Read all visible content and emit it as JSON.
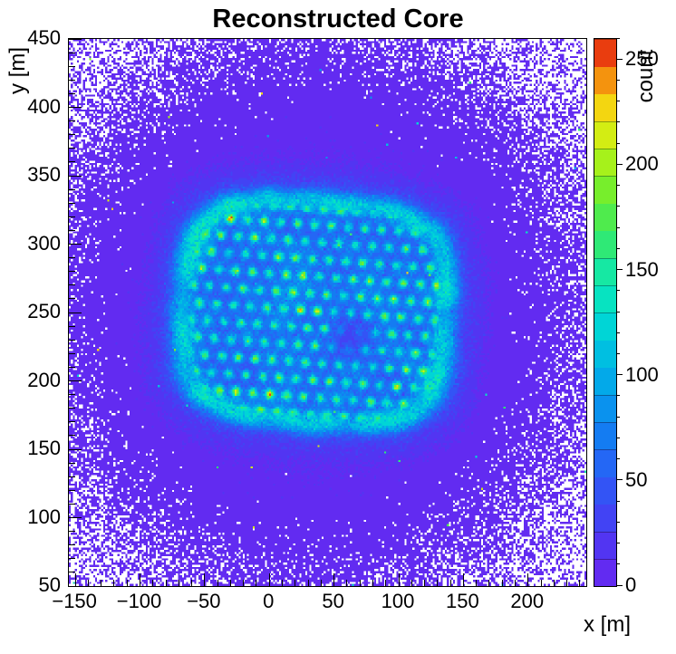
{
  "chart_data": {
    "type": "heatmap",
    "title": "Reconstructed Core",
    "xlabel": "x [m]",
    "ylabel": "y [m]",
    "zlabel": "count",
    "xlim": [
      -155,
      245
    ],
    "ylim": [
      50,
      450
    ],
    "zlim": [
      0,
      260
    ],
    "x_ticks": [
      -150,
      -100,
      -50,
      0,
      50,
      100,
      150,
      200
    ],
    "y_ticks": [
      50,
      100,
      150,
      200,
      250,
      300,
      350,
      400,
      450
    ],
    "z_ticks": [
      0,
      50,
      100,
      150,
      200,
      250
    ],
    "x_minor_step": 10,
    "y_minor_step": 10,
    "z_minor_step": 10,
    "n_contours": 20,
    "grid": false,
    "legend_position": "right-colorbar",
    "bins": {
      "nx": 256,
      "ny": 256
    },
    "background_color": "#ffffff",
    "zero_bin_color": "#ffffff",
    "palette_stops": [
      [
        0.0,
        "#6a26f0"
      ],
      [
        0.1,
        "#4a3af3"
      ],
      [
        0.2,
        "#2b5cf6"
      ],
      [
        0.3,
        "#0d86f1"
      ],
      [
        0.4,
        "#00b4e6"
      ],
      [
        0.5,
        "#00e0d0"
      ],
      [
        0.58,
        "#17e8a0"
      ],
      [
        0.65,
        "#3ce95e"
      ],
      [
        0.72,
        "#72ee2e"
      ],
      [
        0.8,
        "#bdf213"
      ],
      [
        0.86,
        "#f2e713"
      ],
      [
        0.905,
        "#f5b50e"
      ],
      [
        0.95,
        "#f2690d"
      ],
      [
        1.0,
        "#e01010"
      ]
    ],
    "field": {
      "seed": 20240817,
      "background": {
        "center_x": 35,
        "center_y": 250,
        "amplitude": 25,
        "sigma": 80,
        "floor": 0.35
      },
      "core": {
        "center_x": 35,
        "center_y": 250,
        "half_width": 103,
        "half_height": 82,
        "corner_power": 3.5,
        "tilt_deg": -4,
        "interior_level": 40,
        "ring_level": 70,
        "ring_width": 0.085,
        "glow_level": 22,
        "glow_width": 0.2
      },
      "hole": {
        "center_x": 62,
        "center_y": 233,
        "radius": 17,
        "depth": 0.85
      },
      "detector_grid": {
        "origin_x": 2,
        "origin_y": 1,
        "pitch_x": 13,
        "pitch_y": 12.6,
        "row_offset": 6.5,
        "dot_sigma": 2.3,
        "dot_level_min": 75,
        "dot_level_max": 135,
        "hot_fraction": 0.05,
        "hot_level": 165
      },
      "outliers": {
        "probability": 0.0007,
        "level_min": 60,
        "level_max": 230
      }
    }
  }
}
